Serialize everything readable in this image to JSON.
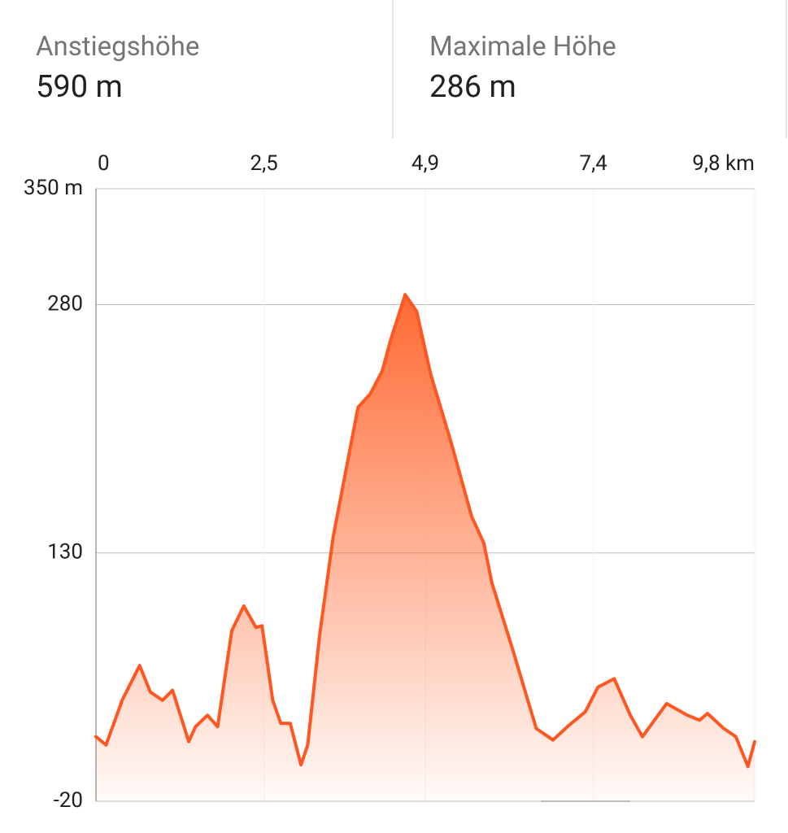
{
  "stats": [
    {
      "label": "Anstiegshöhe",
      "value": "590 m"
    },
    {
      "label": "Maximale Höhe",
      "value": "286 m"
    }
  ],
  "chart_data": {
    "type": "area",
    "x": [
      0,
      0.15,
      0.39,
      0.65,
      0.81,
      0.99,
      1.14,
      1.38,
      1.48,
      1.66,
      1.81,
      2.02,
      2.2,
      2.38,
      2.47,
      2.63,
      2.75,
      2.89,
      3.05,
      3.15,
      3.33,
      3.53,
      3.9,
      4.08,
      4.26,
      4.38,
      4.6,
      4.77,
      4.98,
      5.29,
      5.59,
      5.77,
      5.89,
      6.19,
      6.55,
      6.8,
      7.04,
      7.28,
      7.47,
      7.71,
      7.95,
      8.13,
      8.49,
      8.8,
      8.98,
      9.1,
      9.34,
      9.52,
      9.7,
      9.8
    ],
    "series": [
      {
        "color": "#ff5722",
        "values": [
          19,
          14,
          41,
          62,
          46,
          41,
          47,
          16,
          25,
          32,
          25,
          83,
          98,
          85,
          86,
          41,
          27,
          27,
          2,
          14,
          81,
          140,
          218,
          226,
          240,
          258,
          286,
          276,
          238,
          196,
          152,
          136,
          112,
          73,
          24,
          17,
          26,
          34,
          49,
          54,
          32,
          19,
          39,
          32,
          29,
          33,
          24,
          19,
          1,
          16
        ]
      }
    ],
    "xlim": [
      0,
      9.8
    ],
    "xticks": [
      0,
      {
        "value": 2.5,
        "label": "2,5"
      },
      {
        "value": 4.9,
        "label": "4,9"
      },
      {
        "value": 7.4,
        "label": "7,4"
      },
      {
        "value": 9.8,
        "label": "9,8 km"
      }
    ],
    "ylim": [
      -20,
      350
    ],
    "yticks": [
      {
        "value": 350,
        "label": "350 m"
      },
      280,
      130,
      -20
    ],
    "grid": true
  }
}
